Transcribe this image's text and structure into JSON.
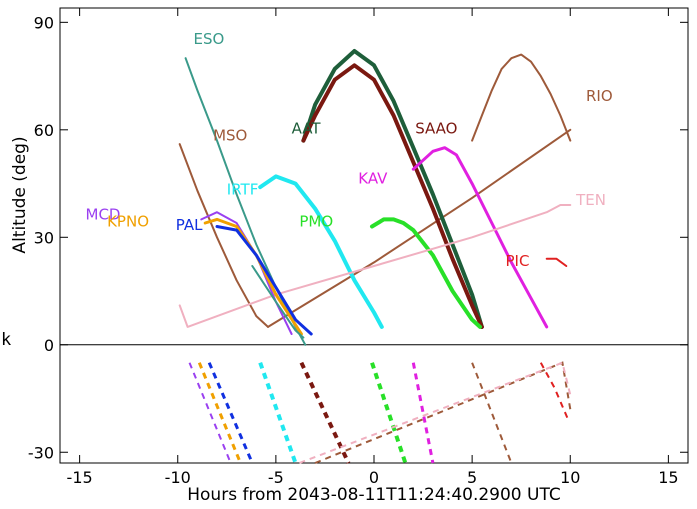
{
  "chart_data": {
    "type": "line",
    "title": "",
    "xlabel": "Hours from 2043-08-11T11:24:40.2900 UTC",
    "ylabel": "Altitude (deg)",
    "xlim": [
      -16,
      16
    ],
    "ylim": [
      -33,
      94
    ],
    "xticks": [
      -15,
      -10,
      -5,
      0,
      5,
      10,
      15
    ],
    "yticks": [
      -30,
      0,
      30,
      60,
      90
    ],
    "ytick_labels": [
      "-30",
      "0",
      "30",
      "60",
      "90"
    ],
    "zero_line": 0,
    "grid": false,
    "stray_text": "k",
    "series": [
      {
        "name": "ESO",
        "color": "#3a9a8a",
        "width": 2,
        "label_at": [
          -9.2,
          84
        ],
        "x": [
          -9.6,
          -9.0,
          -8.0,
          -7.0,
          -6.0,
          -5.0,
          -4.0,
          -3.5
        ],
        "y": [
          80,
          71,
          57,
          42,
          28,
          16,
          5,
          0
        ],
        "dashed_x": [],
        "dashed_y": []
      },
      {
        "name": "MSO",
        "color": "#9e5a3a",
        "width": 2,
        "label_at": [
          -8.2,
          57
        ],
        "x": [
          -9.9,
          -9.0,
          -8.0,
          -7.0,
          -6.0,
          -5.4
        ],
        "y": [
          56,
          43,
          30,
          18,
          8,
          5
        ],
        "dashed_x": [],
        "dashed_y": []
      },
      {
        "name": "RIO",
        "color": "#9e5a3a",
        "width": 2,
        "label_at": [
          10.8,
          68
        ],
        "x": [
          -5.4,
          0,
          5,
          10
        ],
        "y": [
          5,
          23,
          41,
          60
        ],
        "dashed_x": [
          5.0,
          7.0
        ],
        "dashed_y": [
          -5,
          -33
        ]
      },
      {
        "name": "",
        "color": "#9e5a3a",
        "width": 2,
        "label_at": null,
        "x": [
          5.0,
          5.5,
          6.0,
          6.5,
          7.0,
          7.5,
          8.0,
          8.5,
          9.0,
          9.5,
          10.0
        ],
        "y": [
          57,
          64,
          71,
          77,
          80,
          81,
          79,
          75,
          70,
          64,
          57
        ],
        "dashed_x": [
          -3.0,
          9.6,
          10.0
        ],
        "dashed_y": [
          -33,
          -5,
          -18
        ]
      },
      {
        "name": "AAT",
        "color": "#1e5e3a",
        "width": 4,
        "label_at": [
          -4.2,
          59
        ],
        "x": [
          -3.6,
          -3.0,
          -2.0,
          -1.0,
          0.0,
          1.0,
          2.0,
          3.0,
          4.0,
          5.0,
          5.5
        ],
        "y": [
          57,
          67,
          77,
          82,
          78,
          68,
          55,
          42,
          28,
          14,
          5
        ],
        "dashed_x": [],
        "dashed_y": []
      },
      {
        "name": "SAAO",
        "color": "#7a1810",
        "width": 4,
        "label_at": [
          2.1,
          59
        ],
        "x": [
          -3.6,
          -3.0,
          -2.0,
          -1.0,
          0.0,
          1.0,
          2.0,
          3.0,
          4.0,
          5.0,
          5.5
        ],
        "y": [
          57,
          64,
          74,
          78,
          74,
          64,
          51,
          38,
          24,
          11,
          5
        ],
        "dashed_x": [
          -3.7,
          -1.3
        ],
        "dashed_y": [
          -5,
          -33
        ]
      },
      {
        "name": "KAV",
        "color": "#e020e0",
        "width": 3,
        "label_at": [
          -0.8,
          45
        ],
        "x": [
          2.0,
          3.0,
          3.6,
          4.2,
          5.0,
          6.0,
          7.0,
          8.0,
          8.8
        ],
        "y": [
          49,
          54,
          55,
          53,
          45,
          34,
          23,
          13,
          5
        ],
        "dashed_x": [
          2.0,
          3.0
        ],
        "dashed_y": [
          -5,
          -33
        ]
      },
      {
        "name": "PMO",
        "color": "#28e028",
        "width": 4,
        "label_at": [
          -3.8,
          33
        ],
        "x": [
          -0.1,
          0.5,
          1.0,
          1.5,
          2.0,
          3.0,
          4.0,
          5.0,
          5.4
        ],
        "y": [
          33,
          35,
          35,
          34,
          32,
          25,
          15,
          7,
          5
        ],
        "dashed_x": [
          -0.1,
          1.6
        ],
        "dashed_y": [
          -5,
          -33
        ]
      },
      {
        "name": "IRTF",
        "color": "#20e8f0",
        "width": 4,
        "label_at": [
          -7.5,
          42
        ],
        "x": [
          -5.8,
          -5.0,
          -4.0,
          -3.0,
          -2.0,
          -1.0,
          0.0,
          0.4
        ],
        "y": [
          44,
          47,
          45,
          38,
          29,
          18,
          9,
          5
        ],
        "dashed_x": [
          -5.8,
          -4.0
        ],
        "dashed_y": [
          -5,
          -33
        ]
      },
      {
        "name": "TEN",
        "color": "#f0b0c0",
        "width": 2,
        "label_at": [
          10.3,
          39
        ],
        "x": [
          -9.9,
          -9.5,
          -5.0,
          0.0,
          5.0,
          8.8,
          9.5,
          10.0
        ],
        "y": [
          11,
          5,
          14,
          22,
          30,
          37,
          39,
          39
        ],
        "dashed_x": [
          -3.8,
          9.6,
          10.0
        ],
        "dashed_y": [
          -33,
          -5,
          -14
        ]
      },
      {
        "name": "PIC",
        "color": "#e02020",
        "width": 2,
        "label_at": [
          6.7,
          22
        ],
        "x": [
          8.8,
          9.3,
          9.8
        ],
        "y": [
          24,
          24,
          22
        ],
        "dashed_x": [
          8.5,
          9.2,
          9.9
        ],
        "dashed_y": [
          -5,
          -12,
          -21
        ]
      },
      {
        "name": "MCD",
        "color": "#9a40f0",
        "width": 2,
        "label_at": [
          -14.7,
          35
        ],
        "x": [
          -8.8,
          -8.0,
          -7.0,
          -6.0,
          -5.0,
          -4.2
        ],
        "y": [
          35,
          37,
          34,
          25,
          12,
          3
        ],
        "dashed_x": [
          -9.4,
          -7.3
        ],
        "dashed_y": [
          -5,
          -33
        ]
      },
      {
        "name": "KPNO",
        "color": "#f0a000",
        "width": 3,
        "label_at": [
          -13.6,
          33
        ],
        "x": [
          -8.6,
          -8.0,
          -7.0,
          -6.0,
          -5.0,
          -3.7
        ],
        "y": [
          34,
          35,
          33,
          25,
          14,
          3
        ],
        "dashed_x": [
          -8.9,
          -6.8
        ],
        "dashed_y": [
          -5,
          -33
        ]
      },
      {
        "name": "PAL",
        "color": "#1030e0",
        "width": 3,
        "label_at": [
          -10.1,
          32
        ],
        "x": [
          -8.0,
          -7.0,
          -6.0,
          -5.0,
          -4.0,
          -3.2
        ],
        "y": [
          33,
          32,
          25,
          16,
          7,
          3
        ],
        "dashed_x": [
          -8.4,
          -6.2
        ],
        "dashed_y": [
          -5,
          -33
        ]
      },
      {
        "name": "",
        "color": "#3a9a8a",
        "width": 2,
        "label_at": null,
        "x": [
          -6.2,
          -5.0,
          -4.0,
          -3.6
        ],
        "y": [
          22,
          12,
          4,
          2
        ],
        "dashed_x": [],
        "dashed_y": []
      }
    ]
  }
}
